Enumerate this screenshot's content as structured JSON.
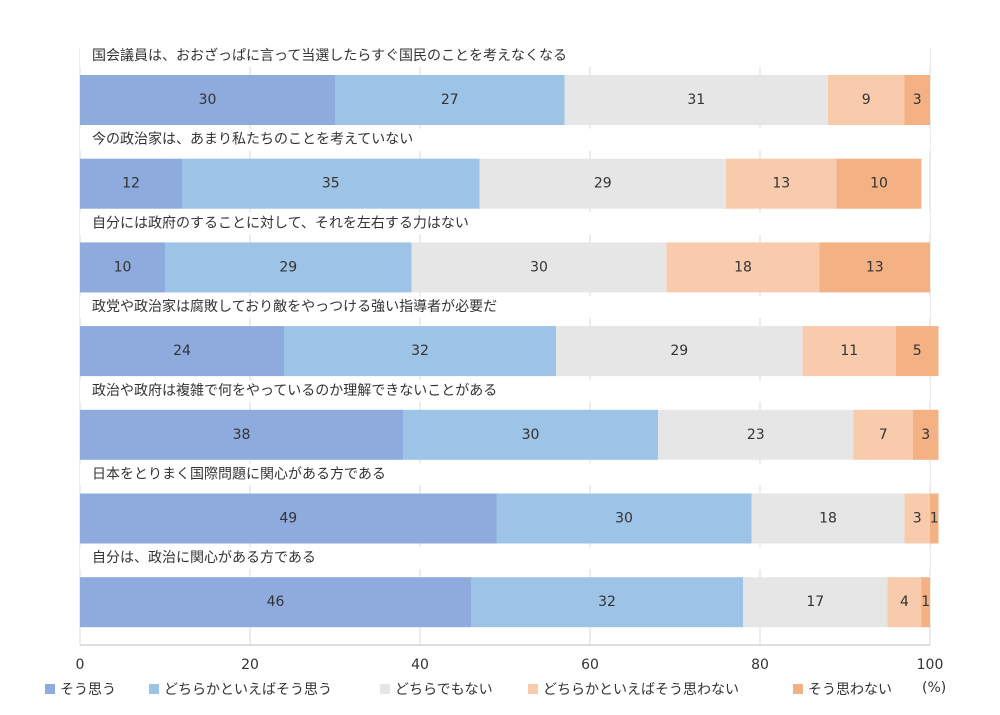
{
  "chart_data": {
    "type": "bar",
    "orientation": "horizontal",
    "stacked": true,
    "categories": [
      "国会議員は、おおざっぱに言って当選したらすぐ国民のことを考えなくなる",
      "今の政治家は、あまり私たちのことを考えていない",
      "自分には政府のすることに対して、それを左右する力はない",
      "政党や政治家は腐敗しており敵をやっつける強い指導者が必要だ",
      "政治や政府は複雑で何をやっているのか理解できないことがある",
      "日本をとりまく国際問題に関心がある方である",
      "自分は、政治に関心がある方である"
    ],
    "series": [
      {
        "name": "そう思う",
        "color": "#8faadc",
        "values": [
          30,
          12,
          10,
          24,
          38,
          49,
          46
        ]
      },
      {
        "name": "どちらかといえばそう思う",
        "color": "#9dc3e6",
        "values": [
          27,
          35,
          29,
          32,
          30,
          30,
          32
        ]
      },
      {
        "name": "どちらでもない",
        "color": "#e7e6e6",
        "values": [
          31,
          29,
          30,
          29,
          23,
          18,
          17
        ]
      },
      {
        "name": "どちらかといえばそう思わない",
        "color": "#f8cbad",
        "values": [
          9,
          13,
          18,
          11,
          7,
          3,
          4
        ]
      },
      {
        "name": "そう思わない",
        "color": "#f4b183",
        "values": [
          3,
          10,
          13,
          5,
          3,
          1,
          1
        ]
      }
    ],
    "xlim": [
      0,
      100
    ],
    "xticks": [
      0,
      20,
      40,
      60,
      80,
      100
    ],
    "x_unit": "(%)",
    "grid": true,
    "legend": "bottom"
  }
}
